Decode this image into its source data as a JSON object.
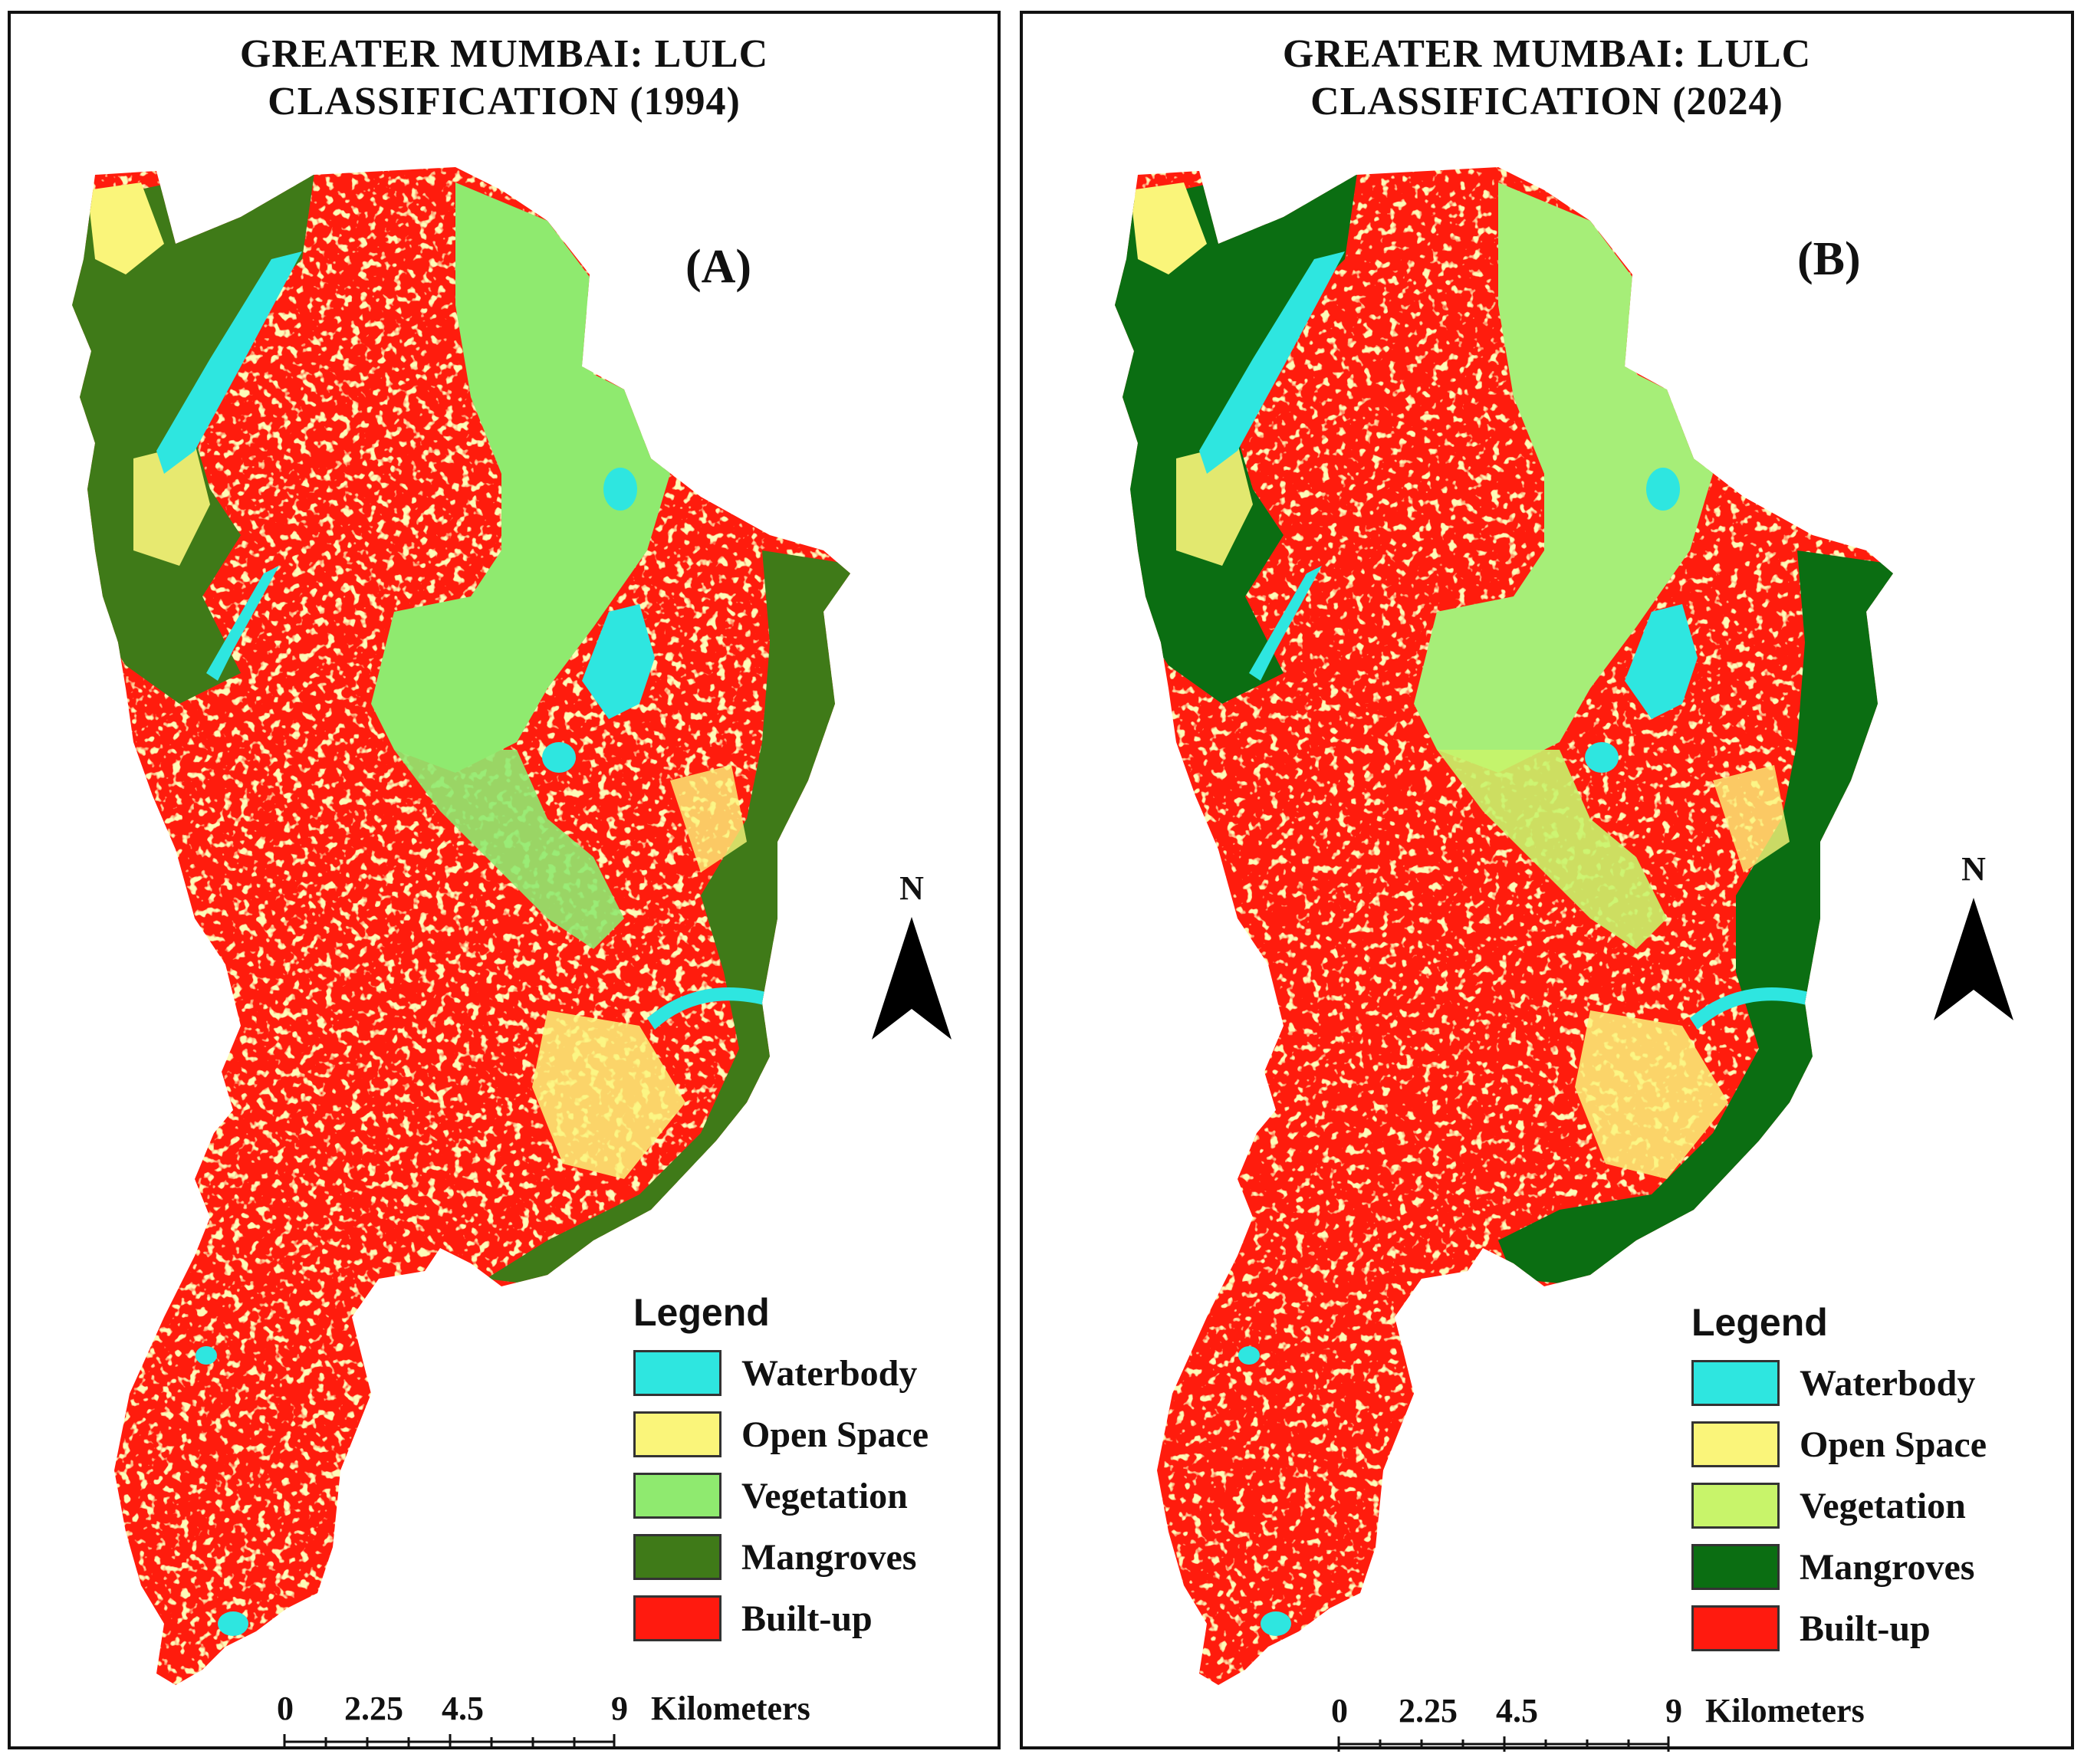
{
  "panels": [
    {
      "id": "A",
      "title_line1": "GREATER MUMBAI: LULC",
      "title_line2": "CLASSIFICATION (1994)",
      "label": "(A)",
      "north": "N",
      "legend_title": "Legend",
      "legend": [
        {
          "label": "Waterbody",
          "color": "#2EE6E0"
        },
        {
          "label": "Open Space",
          "color": "#FAF57A"
        },
        {
          "label": "Vegetation",
          "color": "#8FEA6F"
        },
        {
          "label": "Mangroves",
          "color": "#3F7A18"
        },
        {
          "label": "Built-up",
          "color": "#FF1A0F"
        }
      ],
      "scale": {
        "ticks": [
          "0",
          "2.25",
          "4.5",
          "9"
        ],
        "unit": "Kilometers"
      }
    },
    {
      "id": "B",
      "title_line1": "GREATER MUMBAI: LULC",
      "title_line2": "CLASSIFICATION (2024)",
      "label": "(B)",
      "north": "N",
      "legend_title": "Legend",
      "legend": [
        {
          "label": "Waterbody",
          "color": "#2EE6E0"
        },
        {
          "label": "Open Space",
          "color": "#FAF57A"
        },
        {
          "label": "Vegetation",
          "color": "#C8F46A"
        },
        {
          "label": "Mangroves",
          "color": "#0B6E12"
        },
        {
          "label": "Built-up",
          "color": "#FF1A0F"
        }
      ],
      "scale": {
        "ticks": [
          "0",
          "2.25",
          "4.5",
          "9"
        ],
        "unit": "Kilometers"
      }
    }
  ]
}
